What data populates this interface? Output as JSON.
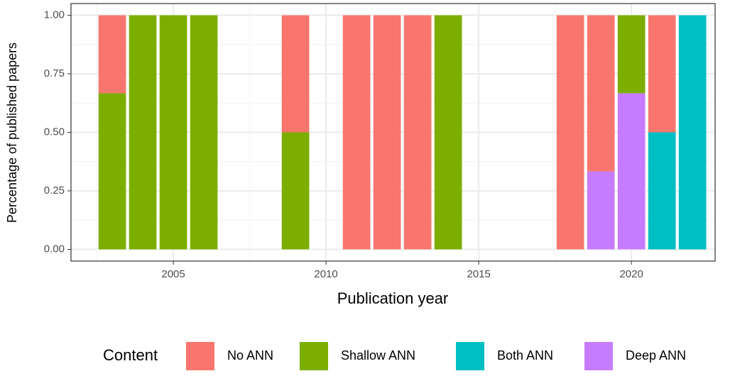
{
  "chart_data": {
    "type": "bar",
    "stacked": true,
    "x_label": "Publication year",
    "y_label": "Percentage of published papers",
    "legend_title": "Content",
    "legend_position": "bottom",
    "grid": true,
    "x": [
      2003,
      2004,
      2005,
      2006,
      2009,
      2011,
      2012,
      2013,
      2014,
      2018,
      2019,
      2020,
      2021,
      2022
    ],
    "series": [
      {
        "name": "No ANN",
        "color": "#F8766D",
        "values": [
          0.333,
          0,
          0,
          0,
          0.5,
          1,
          1,
          1,
          0,
          1,
          0.667,
          0,
          0.5,
          0
        ]
      },
      {
        "name": "Shallow ANN",
        "color": "#7CAE00",
        "values": [
          0.667,
          1,
          1,
          1,
          0.5,
          0,
          0,
          0,
          1,
          0,
          0,
          0.333,
          0,
          0
        ]
      },
      {
        "name": "Both ANN",
        "color": "#00BFC4",
        "values": [
          0,
          0,
          0,
          0,
          0,
          0,
          0,
          0,
          0,
          0,
          0,
          0,
          0.5,
          1
        ]
      },
      {
        "name": "Deep ANN",
        "color": "#C77CFF",
        "values": [
          0,
          0,
          0,
          0,
          0,
          0,
          0,
          0,
          0,
          0,
          0.333,
          0.667,
          0,
          0
        ]
      }
    ],
    "xlim": [
      2001.65,
      2022.74
    ],
    "xticks": [
      2005,
      2010,
      2015,
      2020
    ],
    "ylim": [
      -0.05,
      1.05
    ],
    "yticks": [
      {
        "value": 0,
        "label": "0.00"
      },
      {
        "value": 0.25,
        "label": "0.25"
      },
      {
        "value": 0.5,
        "label": "0.50"
      },
      {
        "value": 0.75,
        "label": "0.75"
      },
      {
        "value": 1,
        "label": "1.00"
      }
    ]
  }
}
